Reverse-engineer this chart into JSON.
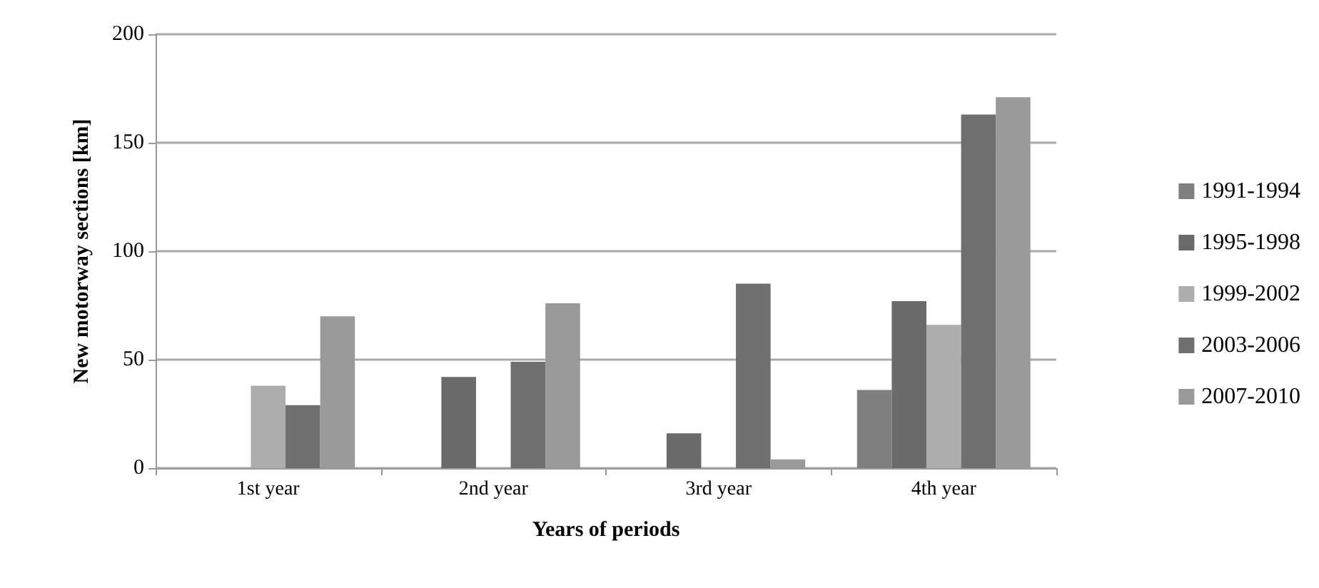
{
  "chart_data": {
    "type": "bar",
    "xlabel": "Years of periods",
    "ylabel": "New motorway sections [km]",
    "categories": [
      "1st year",
      "2nd year",
      "3rd year",
      "4th year"
    ],
    "series": [
      {
        "name": "1991-1994",
        "color": "#7f7f7f",
        "values": [
          0,
          0,
          0,
          36
        ]
      },
      {
        "name": "1995-1998",
        "color": "#6a6a6a",
        "values": [
          0,
          42,
          16,
          77
        ]
      },
      {
        "name": "1999-2002",
        "color": "#adadad",
        "values": [
          38,
          0,
          0,
          66
        ]
      },
      {
        "name": "2003-2006",
        "color": "#6f6f6f",
        "values": [
          29,
          49,
          85,
          163
        ]
      },
      {
        "name": "2007-2010",
        "color": "#9a9a9a",
        "values": [
          70,
          76,
          4,
          171
        ]
      }
    ],
    "ylim": [
      0,
      200
    ],
    "yticks": [
      0,
      50,
      100,
      150,
      200
    ],
    "grid": "y",
    "legend": "right"
  }
}
